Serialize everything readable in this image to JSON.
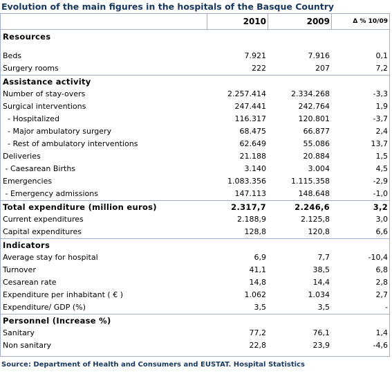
{
  "title": "Evolution of the main figures in the hospitals of the Basque Country",
  "columns": {
    "y2010": "2010",
    "y2009": "2009",
    "change": "Δ % 10/09"
  },
  "rows": [
    {
      "kind": "section",
      "label": "Resources",
      "h": "tall",
      "border": false
    },
    {
      "kind": "data",
      "label": "Beds",
      "v2010": "7.921",
      "v2009": "7.916",
      "chg": "0,1",
      "h": "beds"
    },
    {
      "kind": "data",
      "label": "Surgery rooms",
      "v2010": "222",
      "v2009": "207",
      "chg": "7,2"
    },
    {
      "kind": "section",
      "label": "Assistance activity",
      "border": true
    },
    {
      "kind": "data",
      "label": "Number of stay-overs",
      "v2010": "2.257.414",
      "v2009": "2.334.268",
      "chg": "-3,3"
    },
    {
      "kind": "data",
      "label": "Surgical interventions",
      "v2010": "247.441",
      "v2009": "242.764",
      "chg": "1,9"
    },
    {
      "kind": "data",
      "label": "  - Hospitalized",
      "v2010": "116.317",
      "v2009": "120.801",
      "chg": "-3,7"
    },
    {
      "kind": "data",
      "label": "  - Major ambulatory surgery",
      "v2010": "68.475",
      "v2009": "66.877",
      "chg": "2,4"
    },
    {
      "kind": "data",
      "label": "  - Rest of ambulatory interventions",
      "v2010": "62.649",
      "v2009": "55.086",
      "chg": "13,7"
    },
    {
      "kind": "data",
      "label": "Deliveries",
      "v2010": "21.188",
      "v2009": "20.884",
      "chg": "1,5"
    },
    {
      "kind": "data",
      "label": " - Caesarean Births",
      "v2010": "3.140",
      "v2009": "3.004",
      "chg": "4,5"
    },
    {
      "kind": "data",
      "label": "Emergencies",
      "v2010": "1.083.356",
      "v2009": "1.115.358",
      "chg": "-2,9"
    },
    {
      "kind": "data",
      "label": " - Emergency admissions",
      "v2010": "147.113",
      "v2009": "148.648",
      "chg": "-1,0"
    },
    {
      "kind": "section",
      "label": "Total expenditure (million euros)",
      "v2010": "2.317,7",
      "v2009": "2.246,6",
      "chg": "3,2",
      "border": true
    },
    {
      "kind": "data",
      "label": "Current expenditures",
      "v2010": "2.188,9",
      "v2009": "2.125,8",
      "chg": "3,0"
    },
    {
      "kind": "data",
      "label": "Capital expenditures",
      "v2010": "128,8",
      "v2009": "120,8",
      "chg": "6,6"
    },
    {
      "kind": "section",
      "label": "Indicators",
      "border": true
    },
    {
      "kind": "data",
      "label": "Average stay for hospital",
      "v2010": "6,9",
      "v2009": "7,7",
      "chg": "-10,4"
    },
    {
      "kind": "data",
      "label": "Turnover",
      "v2010": "41,1",
      "v2009": "38,5",
      "chg": "6,8"
    },
    {
      "kind": "data",
      "label": "Cesarean rate",
      "v2010": "14,8",
      "v2009": "14,4",
      "chg": "2,8"
    },
    {
      "kind": "data",
      "label": "Expenditure per inhabitant ( € )",
      "v2010": "1.062",
      "v2009": "1.034",
      "chg": "2,7"
    },
    {
      "kind": "data",
      "label": "Expenditure/ GDP (%)",
      "v2010": "3,5",
      "v2009": "3,5",
      "chg": "-"
    },
    {
      "kind": "section",
      "label": "Personnel (Increase %)",
      "border": true
    },
    {
      "kind": "data",
      "label": "Sanitary",
      "v2010": "77,2",
      "v2009": "76,1",
      "chg": "1,4"
    },
    {
      "kind": "data",
      "label": "Non sanitary",
      "v2010": "22,8",
      "v2009": "23,9",
      "chg": "-4,6"
    }
  ],
  "source": "Source: Department of Health and Consumers and EUSTAT. Hospital  Statistics"
}
